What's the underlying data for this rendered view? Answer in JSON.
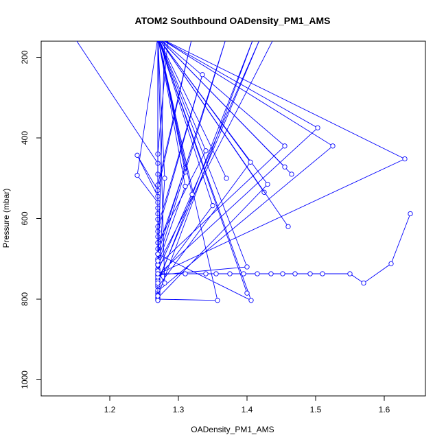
{
  "chart_data": {
    "type": "line",
    "title": "ATOM2 Southbound OADensity_PM1_AMS",
    "xlabel": "OADensity_PM1_AMS",
    "ylabel": "Pressure (mbar)",
    "xlim": [
      1.1,
      1.66
    ],
    "ylim": [
      1040,
      160
    ],
    "y_reversed": true,
    "x_ticks": [
      "1.2",
      "1.3",
      "1.4",
      "1.5",
      "1.6"
    ],
    "y_ticks": [
      "200",
      "400",
      "600",
      "800",
      "1000"
    ],
    "grid": false,
    "series_color": "#0000ff",
    "series": [
      {
        "x": [
          1.15,
          1.27,
          1.27,
          1.27,
          1.27,
          1.27,
          1.32,
          1.27,
          1.24,
          1.27,
          1.27,
          1.24,
          1.27,
          1.27,
          1.27,
          1.27,
          1.27,
          1.27,
          1.27,
          1.27,
          1.27,
          1.335,
          1.27,
          1.27,
          1.27,
          1.27,
          1.34,
          1.27,
          1.27,
          1.31,
          1.27,
          1.27,
          1.27,
          1.27,
          1.27,
          1.27,
          1.455,
          1.27,
          1.27,
          1.27,
          1.28,
          1.27,
          1.27,
          1.503,
          1.27,
          1.27,
          1.27,
          1.27,
          1.27,
          1.27,
          1.525,
          1.27,
          1.27,
          1.27,
          1.27,
          1.27,
          1.27,
          1.63,
          1.27,
          1.27,
          1.405,
          1.27,
          1.27,
          1.27,
          1.27,
          1.43,
          1.27,
          1.27,
          1.27,
          1.27,
          1.406,
          1.27,
          1.27,
          1.27,
          1.31,
          1.27,
          1.27,
          1.27,
          1.27,
          1.27,
          1.4,
          1.27,
          1.27,
          1.35,
          1.27,
          1.27,
          1.27,
          1.27,
          1.27,
          1.27,
          1.28,
          1.27,
          1.27,
          1.357,
          1.27,
          1.27
        ],
        "y": [
          155,
          463,
          150,
          490,
          150,
          517,
          150,
          530,
          443,
          545,
          150,
          493,
          560,
          150,
          574,
          150,
          588,
          150,
          602,
          150,
          620,
          243,
          632,
          150,
          645,
          150,
          432,
          660,
          150,
          474,
          675,
          150,
          688,
          150,
          702,
          150,
          420,
          716,
          150,
          730,
          760,
          150,
          740,
          375,
          150,
          750,
          150,
          765,
          150,
          780,
          420,
          150,
          713,
          150,
          725,
          150,
          738,
          452,
          150,
          770,
          460,
          150,
          785,
          150,
          797,
          515,
          150,
          803,
          150,
          688,
          803,
          150,
          700,
          150,
          520,
          713,
          150,
          726,
          150,
          740,
          720,
          150,
          752,
          568,
          150,
          765,
          150,
          778,
          150,
          790,
          500,
          150,
          800,
          803,
          150,
          803
        ]
      },
      {
        "x": [
          1.285,
          1.27,
          1.27,
          1.31,
          1.27,
          1.37,
          1.27,
          1.425,
          1.27,
          1.465,
          1.27,
          1.27,
          1.31,
          1.34,
          1.355,
          1.375,
          1.395,
          1.415,
          1.435,
          1.452,
          1.47,
          1.492,
          1.51,
          1.55,
          1.57,
          1.61,
          1.638
        ],
        "y": [
          150,
          440,
          150,
          485,
          150,
          500,
          150,
          535,
          150,
          490,
          150,
          737,
          737,
          737,
          737,
          737,
          737,
          737,
          737,
          737,
          737,
          737,
          737,
          737,
          760,
          712,
          588
        ]
      },
      {
        "x": [
          1.44,
          1.27,
          1.27,
          1.46,
          1.27,
          1.27,
          1.42,
          1.27,
          1.27,
          1.4,
          1.27,
          1.27,
          1.37,
          1.27,
          1.27,
          1.455,
          1.27,
          1.27,
          1.41,
          1.27,
          1.27,
          1.32,
          1.27,
          1.27,
          1.28,
          1.27
        ],
        "y": [
          150,
          715,
          150,
          620,
          150,
          730,
          150,
          755,
          150,
          785,
          150,
          688,
          150,
          705,
          150,
          472,
          150,
          760,
          150,
          792,
          150,
          540,
          150,
          745,
          150,
          737
        ]
      }
    ]
  }
}
